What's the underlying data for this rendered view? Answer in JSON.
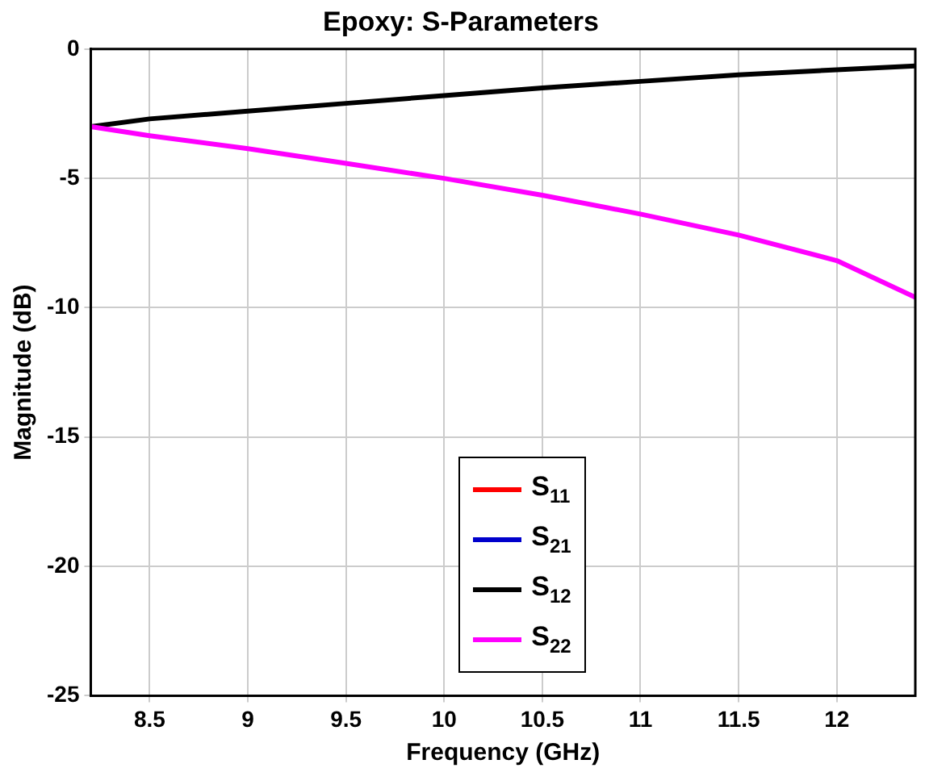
{
  "chart_data": {
    "type": "line",
    "title": "Epoxy: S-Parameters",
    "xlabel": "Frequency (GHz)",
    "ylabel": "Magnitude (dB)",
    "x": [
      8.2,
      8.5,
      9,
      9.5,
      10,
      10.5,
      11,
      11.5,
      12,
      12.4
    ],
    "series": [
      {
        "name": "S$_{11}$",
        "color": "#ff0000",
        "values": [
          null,
          null,
          null,
          null,
          null,
          null,
          null,
          null,
          null,
          null
        ]
      },
      {
        "name": "S$_{21}$",
        "color": "#0000cc",
        "values": [
          null,
          null,
          null,
          null,
          null,
          null,
          null,
          null,
          null,
          null
        ]
      },
      {
        "name": "S$_{12}$",
        "color": "#000000",
        "values": [
          -3.0,
          -2.7,
          -2.4,
          -2.1,
          -1.8,
          -1.5,
          -1.25,
          -1.0,
          -0.8,
          -0.65
        ]
      },
      {
        "name": "S$_{22}$",
        "color": "#ff00ff",
        "values": [
          -3.0,
          -3.35,
          -3.85,
          -4.42,
          -5.0,
          -5.65,
          -6.38,
          -7.19,
          -8.18,
          -9.6
        ]
      }
    ],
    "xlim": [
      8.2,
      12.4
    ],
    "xticks": [
      8.5,
      9,
      9.5,
      10,
      10.5,
      11,
      11.5,
      12
    ],
    "ylim": [
      -25,
      0
    ],
    "yticks": [
      -25,
      -20,
      -15,
      -10,
      -5,
      0
    ],
    "grid": true,
    "legend": "bottom",
    "marker": "none",
    "line_style": "solid"
  }
}
